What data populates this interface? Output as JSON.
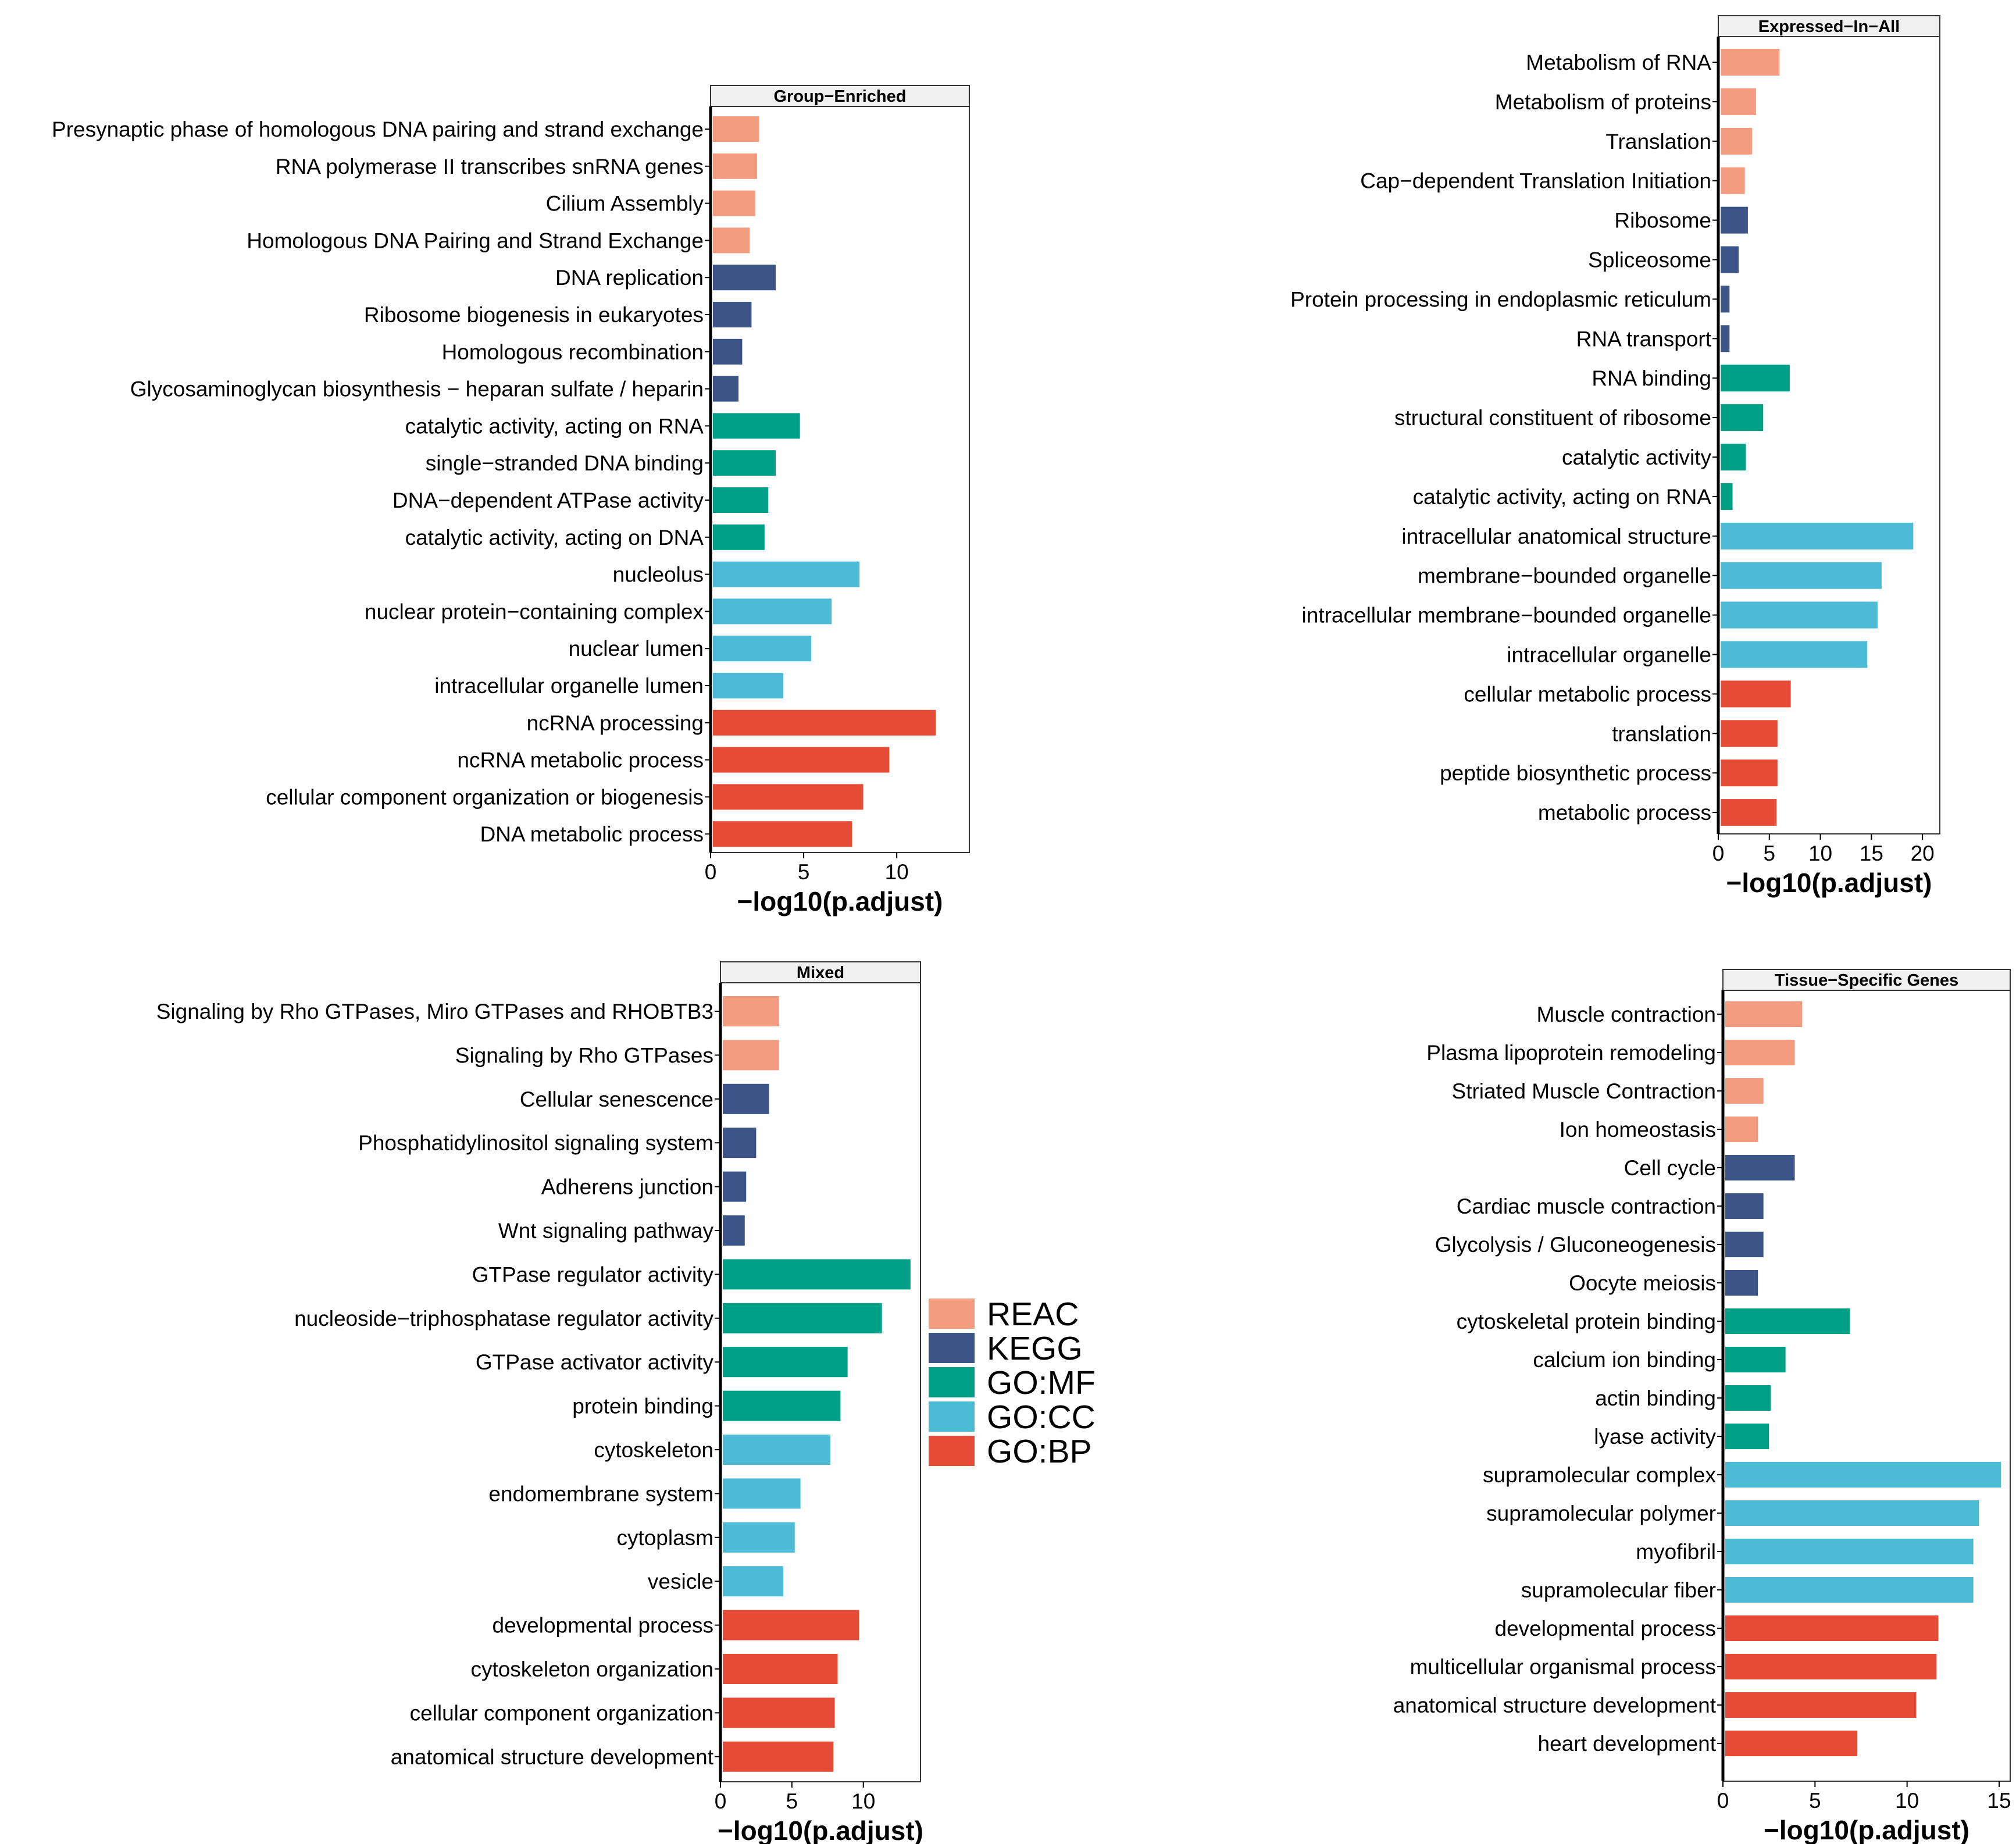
{
  "legend": {
    "entries": [
      {
        "label": "REAC",
        "color": "#F39C7F"
      },
      {
        "label": "KEGG",
        "color": "#3C5488"
      },
      {
        "label": "GO:MF",
        "color": "#00A087"
      },
      {
        "label": "GO:CC",
        "color": "#4DBBD5"
      },
      {
        "label": "GO:BP",
        "color": "#E64B35"
      }
    ]
  },
  "chart_data": [
    {
      "type": "bar",
      "orientation": "horizontal",
      "title": "Group−Enriched",
      "xlabel": "−log10(p.adjust)",
      "xlim": [
        0,
        13.9
      ],
      "xticks": [
        "0",
        "5",
        "10"
      ],
      "xtick_values": [
        0,
        5,
        10
      ],
      "bars": [
        {
          "label": "Presynaptic phase of homologous DNA pairing and strand exchange",
          "value": 2.6,
          "source": "REAC"
        },
        {
          "label": "RNA polymerase II transcribes snRNA genes",
          "value": 2.5,
          "source": "REAC"
        },
        {
          "label": "Cilium Assembly",
          "value": 2.4,
          "source": "REAC"
        },
        {
          "label": "Homologous DNA Pairing and Strand Exchange",
          "value": 2.1,
          "source": "REAC"
        },
        {
          "label": "DNA replication",
          "value": 3.5,
          "source": "KEGG"
        },
        {
          "label": "Ribosome biogenesis in eukaryotes",
          "value": 2.2,
          "source": "KEGG"
        },
        {
          "label": "Homologous recombination",
          "value": 1.7,
          "source": "KEGG"
        },
        {
          "label": "Glycosaminoglycan biosynthesis − heparan sulfate / heparin",
          "value": 1.5,
          "source": "KEGG"
        },
        {
          "label": "catalytic activity, acting on RNA",
          "value": 4.8,
          "source": "GO:MF"
        },
        {
          "label": "single−stranded DNA binding",
          "value": 3.5,
          "source": "GO:MF"
        },
        {
          "label": "DNA−dependent ATPase activity",
          "value": 3.1,
          "source": "GO:MF"
        },
        {
          "label": "catalytic activity, acting on DNA",
          "value": 2.9,
          "source": "GO:MF"
        },
        {
          "label": "nucleolus",
          "value": 8.0,
          "source": "GO:CC"
        },
        {
          "label": "nuclear protein−containing complex",
          "value": 6.5,
          "source": "GO:CC"
        },
        {
          "label": "nuclear lumen",
          "value": 5.4,
          "source": "GO:CC"
        },
        {
          "label": "intracellular organelle lumen",
          "value": 3.9,
          "source": "GO:CC"
        },
        {
          "label": "ncRNA processing",
          "value": 12.1,
          "source": "GO:BP"
        },
        {
          "label": "ncRNA metabolic process",
          "value": 9.6,
          "source": "GO:BP"
        },
        {
          "label": "cellular component organization or biogenesis",
          "value": 8.2,
          "source": "GO:BP"
        },
        {
          "label": "DNA metabolic process",
          "value": 7.6,
          "source": "GO:BP"
        }
      ]
    },
    {
      "type": "bar",
      "orientation": "horizontal",
      "title": "Expressed−In−All",
      "xlabel": "−log10(p.adjust)",
      "xlim": [
        0,
        21.7
      ],
      "xticks": [
        "0",
        "5",
        "10",
        "15",
        "20"
      ],
      "xtick_values": [
        0,
        5,
        10,
        15,
        20
      ],
      "bars": [
        {
          "label": "Metabolism of RNA",
          "value": 6.0,
          "source": "REAC"
        },
        {
          "label": "Metabolism of proteins",
          "value": 3.7,
          "source": "REAC"
        },
        {
          "label": "Translation",
          "value": 3.3,
          "source": "REAC"
        },
        {
          "label": "Cap−dependent Translation Initiation",
          "value": 2.6,
          "source": "REAC"
        },
        {
          "label": "Ribosome",
          "value": 2.9,
          "source": "KEGG"
        },
        {
          "label": "Spliceosome",
          "value": 2.0,
          "source": "KEGG"
        },
        {
          "label": "Protein processing in endoplasmic reticulum",
          "value": 1.1,
          "source": "KEGG"
        },
        {
          "label": "RNA transport",
          "value": 1.1,
          "source": "KEGG"
        },
        {
          "label": "RNA binding",
          "value": 7.0,
          "source": "GO:MF"
        },
        {
          "label": "structural constituent of ribosome",
          "value": 4.4,
          "source": "GO:MF"
        },
        {
          "label": "catalytic activity",
          "value": 2.7,
          "source": "GO:MF"
        },
        {
          "label": "catalytic activity, acting on RNA",
          "value": 1.4,
          "source": "GO:MF"
        },
        {
          "label": "intracellular anatomical structure",
          "value": 19.1,
          "source": "GO:CC"
        },
        {
          "label": "membrane−bounded organelle",
          "value": 16.0,
          "source": "GO:CC"
        },
        {
          "label": "intracellular membrane−bounded organelle",
          "value": 15.6,
          "source": "GO:CC"
        },
        {
          "label": "intracellular organelle",
          "value": 14.6,
          "source": "GO:CC"
        },
        {
          "label": "cellular metabolic process",
          "value": 7.1,
          "source": "GO:BP"
        },
        {
          "label": "translation",
          "value": 5.8,
          "source": "GO:BP"
        },
        {
          "label": "peptide biosynthetic process",
          "value": 5.8,
          "source": "GO:BP"
        },
        {
          "label": "metabolic process",
          "value": 5.7,
          "source": "GO:BP"
        }
      ]
    },
    {
      "type": "bar",
      "orientation": "horizontal",
      "title": "Mixed",
      "xlabel": "−log10(p.adjust)",
      "xlim": [
        0,
        14.0
      ],
      "xticks": [
        "0",
        "5",
        "10"
      ],
      "xtick_values": [
        0,
        5,
        10
      ],
      "bars": [
        {
          "label": "Signaling by Rho GTPases, Miro GTPases and RHOBTB3",
          "value": 4.1,
          "source": "REAC"
        },
        {
          "label": "Signaling by Rho GTPases",
          "value": 4.1,
          "source": "REAC"
        },
        {
          "label": "Cellular senescence",
          "value": 3.4,
          "source": "KEGG"
        },
        {
          "label": "Phosphatidylinositol signaling system",
          "value": 2.5,
          "source": "KEGG"
        },
        {
          "label": "Adherens junction",
          "value": 1.8,
          "source": "KEGG"
        },
        {
          "label": "Wnt signaling pathway",
          "value": 1.7,
          "source": "KEGG"
        },
        {
          "label": "GTPase regulator activity",
          "value": 13.3,
          "source": "GO:MF"
        },
        {
          "label": "nucleoside−triphosphatase regulator activity",
          "value": 11.3,
          "source": "GO:MF"
        },
        {
          "label": "GTPase activator activity",
          "value": 8.9,
          "source": "GO:MF"
        },
        {
          "label": "protein binding",
          "value": 8.4,
          "source": "GO:MF"
        },
        {
          "label": "cytoskeleton",
          "value": 7.7,
          "source": "GO:CC"
        },
        {
          "label": "endomembrane system",
          "value": 5.6,
          "source": "GO:CC"
        },
        {
          "label": "cytoplasm",
          "value": 5.2,
          "source": "GO:CC"
        },
        {
          "label": "vesicle",
          "value": 4.4,
          "source": "GO:CC"
        },
        {
          "label": "developmental process",
          "value": 9.7,
          "source": "GO:BP"
        },
        {
          "label": "cytoskeleton organization",
          "value": 8.2,
          "source": "GO:BP"
        },
        {
          "label": "cellular component organization",
          "value": 8.0,
          "source": "GO:BP"
        },
        {
          "label": "anatomical structure development",
          "value": 7.9,
          "source": "GO:BP"
        }
      ]
    },
    {
      "type": "bar",
      "orientation": "horizontal",
      "title": "Tissue−Specific Genes",
      "xlabel": "−log10(p.adjust)",
      "xlim": [
        0,
        15.6
      ],
      "xticks": [
        "0",
        "5",
        "10",
        "15"
      ],
      "xtick_values": [
        0,
        5,
        10,
        15
      ],
      "bars": [
        {
          "label": "Muscle contraction",
          "value": 4.3,
          "source": "REAC"
        },
        {
          "label": "Plasma lipoprotein remodeling",
          "value": 3.9,
          "source": "REAC"
        },
        {
          "label": "Striated Muscle Contraction",
          "value": 2.2,
          "source": "REAC"
        },
        {
          "label": "Ion homeostasis",
          "value": 1.9,
          "source": "REAC"
        },
        {
          "label": "Cell cycle",
          "value": 3.9,
          "source": "KEGG"
        },
        {
          "label": "Cardiac muscle contraction",
          "value": 2.2,
          "source": "KEGG"
        },
        {
          "label": "Glycolysis / Gluconeogenesis",
          "value": 2.2,
          "source": "KEGG"
        },
        {
          "label": "Oocyte meiosis",
          "value": 1.9,
          "source": "KEGG"
        },
        {
          "label": "cytoskeletal protein binding",
          "value": 6.9,
          "source": "GO:MF"
        },
        {
          "label": "calcium ion binding",
          "value": 3.4,
          "source": "GO:MF"
        },
        {
          "label": "actin binding",
          "value": 2.6,
          "source": "GO:MF"
        },
        {
          "label": "lyase activity",
          "value": 2.5,
          "source": "GO:MF"
        },
        {
          "label": "supramolecular complex",
          "value": 15.1,
          "source": "GO:CC"
        },
        {
          "label": "supramolecular polymer",
          "value": 13.9,
          "source": "GO:CC"
        },
        {
          "label": "myofibril",
          "value": 13.6,
          "source": "GO:CC"
        },
        {
          "label": "supramolecular fiber",
          "value": 13.6,
          "source": "GO:CC"
        },
        {
          "label": "developmental process",
          "value": 11.7,
          "source": "GO:BP"
        },
        {
          "label": "multicellular organismal process",
          "value": 11.6,
          "source": "GO:BP"
        },
        {
          "label": "anatomical structure development",
          "value": 10.5,
          "source": "GO:BP"
        },
        {
          "label": "heart development",
          "value": 7.3,
          "source": "GO:BP"
        }
      ]
    }
  ]
}
